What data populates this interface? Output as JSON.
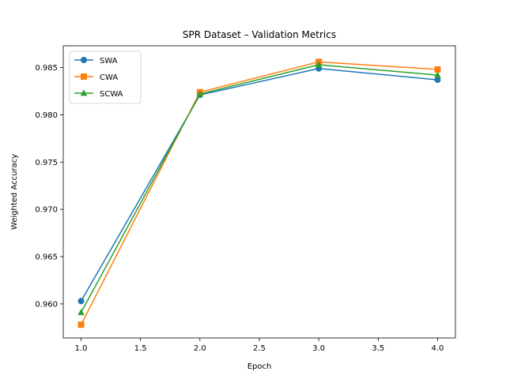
{
  "chart_data": {
    "type": "line",
    "title": "SPR Dataset – Validation Metrics",
    "xlabel": "Epoch",
    "ylabel": "Weighted Accuracy",
    "x": [
      1.0,
      2.0,
      3.0,
      4.0
    ],
    "xlim": [
      0.85,
      4.15
    ],
    "ylim": [
      0.9564,
      0.9873
    ],
    "xticks": [
      1.0,
      1.5,
      2.0,
      2.5,
      3.0,
      3.5,
      4.0
    ],
    "xtick_labels": [
      "1.0",
      "1.5",
      "2.0",
      "2.5",
      "3.0",
      "3.5",
      "4.0"
    ],
    "yticks": [
      0.96,
      0.965,
      0.97,
      0.975,
      0.98,
      0.985
    ],
    "ytick_labels": [
      "0.960",
      "0.965",
      "0.970",
      "0.975",
      "0.980",
      "0.985"
    ],
    "grid": false,
    "legend": "upper-left",
    "series": [
      {
        "name": "SWA",
        "color": "#1f77b4",
        "marker": "circle",
        "values": [
          0.9603,
          0.9821,
          0.9849,
          0.9837
        ]
      },
      {
        "name": "CWA",
        "color": "#ff7f0e",
        "marker": "square",
        "values": [
          0.9578,
          0.9824,
          0.9856,
          0.9848
        ]
      },
      {
        "name": "SCWA",
        "color": "#2ca02c",
        "marker": "triangle",
        "values": [
          0.9591,
          0.9822,
          0.9853,
          0.9842
        ]
      }
    ]
  }
}
